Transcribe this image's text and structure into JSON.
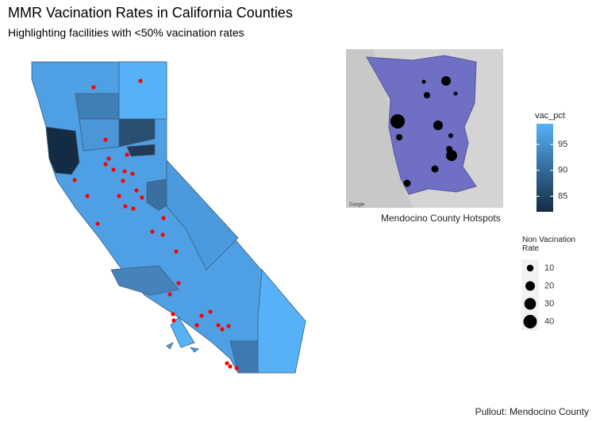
{
  "title": "MMR Vacination Rates in California Counties",
  "subtitle": "Highlighting facilities with <50% vacination rates",
  "inset": {
    "caption": "Mendocino County Hotspots",
    "attribution": "Google"
  },
  "caption": "Pullout: Mendocino County",
  "legends": {
    "fill": {
      "title": "vac_pct",
      "range": [
        82,
        99
      ],
      "ticks": [
        85,
        90,
        95
      ],
      "colors": [
        "#132B43",
        "#56B1F7"
      ]
    },
    "size": {
      "title": "Non Vacination Rate",
      "values": [
        10,
        20,
        30,
        40
      ]
    }
  }
}
